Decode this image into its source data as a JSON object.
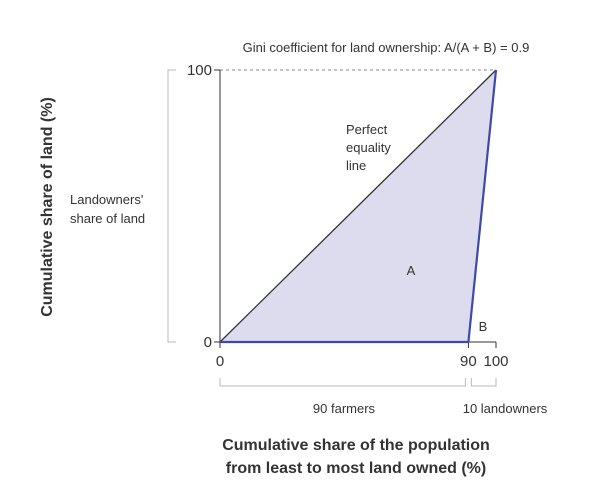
{
  "chart_data": {
    "type": "area",
    "title": "Gini coefficient for land ownership: A/(A + B) = 0.9",
    "xlabel": [
      "Cumulative share of the population",
      "from least to most land owned (%)"
    ],
    "ylabel": "Cumulative share of land (%)",
    "xlim": [
      0,
      100
    ],
    "ylim": [
      0,
      100
    ],
    "x_ticks": [
      {
        "value": 0,
        "label": "0"
      },
      {
        "value": 90,
        "label": "90"
      },
      {
        "value": 100,
        "label": "100"
      }
    ],
    "y_ticks": [
      {
        "value": 0,
        "label": "0"
      },
      {
        "value": 100,
        "label": "100"
      }
    ],
    "grid": false,
    "series": [
      {
        "name": "",
        "role": "equality-line",
        "x": [
          0,
          100
        ],
        "y": [
          0,
          100
        ]
      },
      {
        "name": "",
        "role": "lorenz-curve",
        "x": [
          0,
          90,
          100
        ],
        "y": [
          0,
          0,
          100
        ]
      }
    ],
    "annotations": {
      "equality_line_label": [
        "Perfect",
        "equality",
        "line"
      ],
      "region_a": "A",
      "region_b": "B",
      "landowners_share_label": [
        "Landowners'",
        "share of land"
      ],
      "farmers_bracket_label": "90 farmers",
      "landowners_bracket_label": "10 landowners"
    },
    "colors": {
      "axis": "#333333",
      "equality_line": "#333333",
      "lorenz_curve": "#3d4aa8",
      "fill_a": "#dcdcee",
      "reference_dash": "#888888",
      "bracket": "#bbbbbb",
      "text": "#333333"
    }
  }
}
